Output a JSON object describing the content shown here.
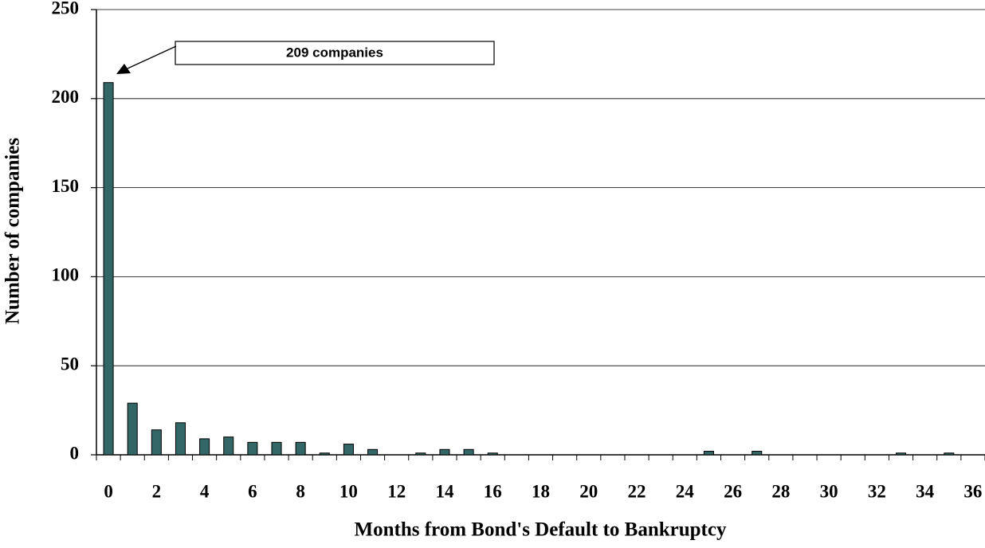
{
  "chart_data": {
    "type": "bar",
    "x_label": "Months from Bond's Default to Bankruptcy",
    "y_label": "Number of companies",
    "annotation": "209 companies",
    "categories": [
      "0",
      null,
      "2",
      null,
      "4",
      null,
      "6",
      null,
      "8",
      null,
      "10",
      null,
      "12",
      null,
      "14",
      null,
      "16",
      null,
      "18",
      null,
      "20",
      null,
      "22",
      null,
      "24",
      null,
      "26",
      null,
      "28",
      null,
      "30",
      null,
      "32",
      null,
      "34",
      null,
      "36"
    ],
    "values": [
      209,
      29,
      14,
      18,
      9,
      10,
      7,
      7,
      7,
      1,
      6,
      3,
      0,
      1,
      3,
      3,
      1,
      0,
      0,
      0,
      0,
      0,
      0,
      0,
      0,
      2,
      0,
      2,
      0,
      0,
      0,
      0,
      0,
      1,
      0,
      1,
      0
    ],
    "color": "#336666",
    "ylim": [
      0,
      250
    ],
    "yticks": [
      0,
      50,
      100,
      150,
      200,
      250
    ],
    "grid": true
  }
}
